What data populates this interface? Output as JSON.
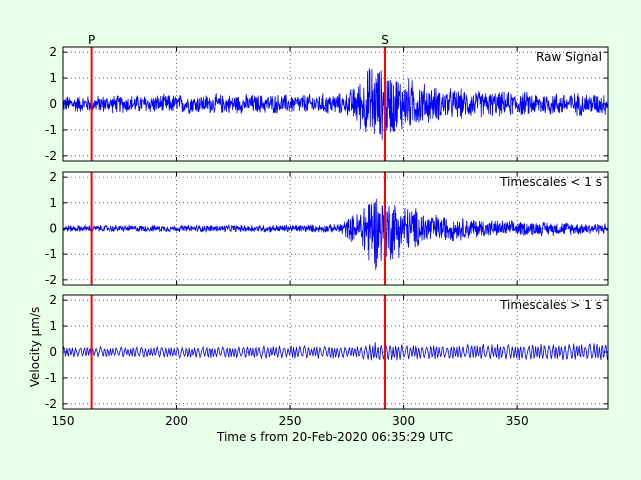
{
  "chart_data": {
    "type": "line",
    "xlabel": "Time s from 20-Feb-2020 06:35:29 UTC",
    "ylabel": "Velocity μm/s",
    "xlim": [
      150,
      390
    ],
    "xticks": [
      150,
      200,
      250,
      300,
      350
    ],
    "grid": true,
    "phase_picks": [
      {
        "name": "P",
        "x": 162.6
      },
      {
        "name": "S",
        "x": 291.8
      }
    ],
    "colors": {
      "trace": "#0000ff",
      "pick": "#ff0000",
      "background": "#e8ffe8"
    },
    "panels": [
      {
        "label": "Raw Signal",
        "ylim": [
          -2.2,
          2.2
        ],
        "yticks": [
          -2,
          -1,
          0,
          1,
          2
        ],
        "envelope": [
          {
            "x": 150,
            "amp": 0.3
          },
          {
            "x": 200,
            "amp": 0.35
          },
          {
            "x": 250,
            "amp": 0.35
          },
          {
            "x": 275,
            "amp": 0.4
          },
          {
            "x": 282,
            "amp": 1.0
          },
          {
            "x": 286,
            "amp": 1.5
          },
          {
            "x": 290,
            "amp": 1.3
          },
          {
            "x": 300,
            "amp": 1.0
          },
          {
            "x": 315,
            "amp": 0.6
          },
          {
            "x": 340,
            "amp": 0.45
          },
          {
            "x": 390,
            "amp": 0.4
          }
        ]
      },
      {
        "label": "Timescales < 1 s",
        "ylim": [
          -2.2,
          2.2
        ],
        "yticks": [
          -2,
          -1,
          0,
          1,
          2
        ],
        "envelope": [
          {
            "x": 150,
            "amp": 0.12
          },
          {
            "x": 200,
            "amp": 0.12
          },
          {
            "x": 270,
            "amp": 0.15
          },
          {
            "x": 280,
            "amp": 0.6
          },
          {
            "x": 285,
            "amp": 1.5
          },
          {
            "x": 292,
            "amp": 1.3
          },
          {
            "x": 300,
            "amp": 0.9
          },
          {
            "x": 315,
            "amp": 0.5
          },
          {
            "x": 340,
            "amp": 0.3
          },
          {
            "x": 390,
            "amp": 0.2
          }
        ]
      },
      {
        "label": "Timescales > 1 s",
        "ylim": [
          -2.2,
          2.2
        ],
        "yticks": [
          -2,
          -1,
          0,
          1,
          2
        ],
        "envelope": [
          {
            "x": 150,
            "amp": 0.2
          },
          {
            "x": 200,
            "amp": 0.22
          },
          {
            "x": 280,
            "amp": 0.25
          },
          {
            "x": 290,
            "amp": 0.4
          },
          {
            "x": 300,
            "amp": 0.3
          },
          {
            "x": 350,
            "amp": 0.3
          },
          {
            "x": 390,
            "amp": 0.35
          }
        ]
      }
    ]
  }
}
